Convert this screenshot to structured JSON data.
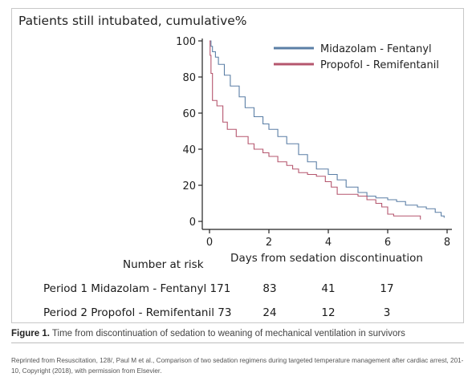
{
  "chart_data": {
    "type": "line",
    "title": "Patients still intubated, cumulative%",
    "xlabel": "Days from sedation discontinuation",
    "ylabel": "",
    "xlim": [
      0,
      8
    ],
    "ylim": [
      0,
      100
    ],
    "x_ticks": [
      0,
      2,
      4,
      6,
      8
    ],
    "y_ticks": [
      0,
      20,
      40,
      60,
      80,
      100
    ],
    "legend_position": "top-right",
    "series": [
      {
        "name": "Midazolam - Fentanyl",
        "color": "#5b7fa6",
        "step": true,
        "x": [
          0,
          0.05,
          0.1,
          0.2,
          0.3,
          0.5,
          0.7,
          1.0,
          1.2,
          1.5,
          1.8,
          2.0,
          2.3,
          2.6,
          3.0,
          3.3,
          3.6,
          4.0,
          4.3,
          4.6,
          5.0,
          5.3,
          5.6,
          6.0,
          6.3,
          6.6,
          7.0,
          7.3,
          7.6,
          7.8,
          7.9
        ],
        "y": [
          100,
          97,
          94,
          91,
          87,
          81,
          75,
          69,
          63,
          58,
          54,
          51,
          47,
          43,
          37,
          33,
          29,
          26,
          23,
          19,
          16,
          14,
          13,
          12,
          11,
          9,
          8,
          7,
          5,
          3,
          2
        ]
      },
      {
        "name": "Propofol - Remifentanil",
        "color": "#b5566e",
        "step": true,
        "x": [
          0,
          0.02,
          0.05,
          0.1,
          0.25,
          0.45,
          0.6,
          0.9,
          1.3,
          1.5,
          1.8,
          2.0,
          2.3,
          2.6,
          2.8,
          3.0,
          3.3,
          3.6,
          3.9,
          4.1,
          4.3,
          5.0,
          5.3,
          5.6,
          5.8,
          6.0,
          6.2,
          6.5,
          7.0,
          7.1
        ],
        "y": [
          100,
          92,
          82,
          67,
          64,
          55,
          51,
          47,
          43,
          40,
          38,
          36,
          33,
          31,
          29,
          27,
          26,
          25,
          22,
          19,
          15,
          14,
          12,
          10,
          8,
          4,
          3,
          3,
          3,
          1
        ]
      }
    ]
  },
  "risk_table": {
    "header": "Number at risk",
    "columns_x": [
      2,
      4,
      6
    ],
    "rows": [
      {
        "label": "Period 1 Midazolam - Fentanyl 171",
        "values": [
          "83",
          "41",
          "17"
        ]
      },
      {
        "label": "Period 2 Propofol - Remifentanil 73",
        "values": [
          "24",
          "12",
          "3"
        ]
      }
    ]
  },
  "caption": {
    "label": "Figure 1.",
    "text": " Time from discontinuation of sedation to weaning of mechanical ventilation in survivors"
  },
  "credit": "Reprinted from Resuscitation, 128/, Paul M et al., Comparison of two sedation regimens during targeted temperature management after cardiac arrest, 201-10, Copyright (2018), with permission from Elsevier."
}
